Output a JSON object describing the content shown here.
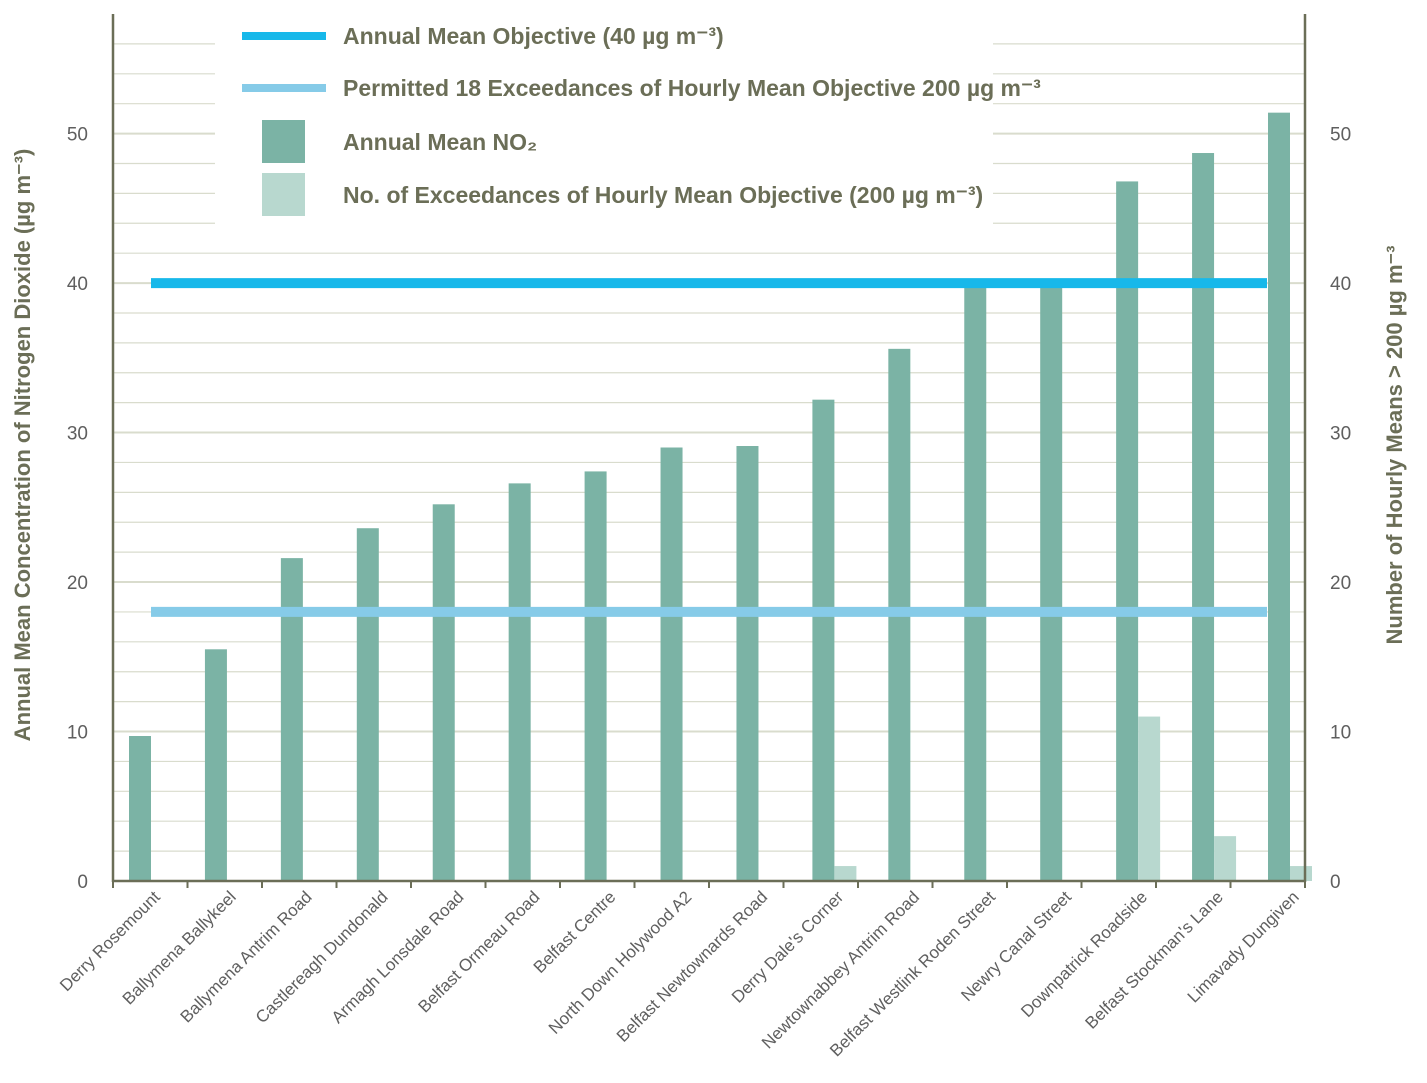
{
  "chart_data": {
    "type": "bar",
    "categories": [
      "Derry Rosemount",
      "Ballymena Ballykeel",
      "Ballymena Antrim Road",
      "Castlereagh Dundonald",
      "Armagh Lonsdale Road",
      "Belfast Ormeau Road",
      "Belfast Centre",
      "North Down Holywood A2",
      "Belfast Newtownards Road",
      "Derry Dale's Corner",
      "Newtownabbey Antrim Road",
      "Belfast Westlink Roden Street",
      "Newry Canal Street",
      "Downpatrick Roadside",
      "Belfast Stockman's Lane",
      "Limavady Dungiven"
    ],
    "series": [
      {
        "name": "Annual Mean NO2",
        "color": "#7bb3a5",
        "axis": "left",
        "values": [
          9.7,
          15.5,
          21.6,
          23.6,
          25.2,
          26.6,
          27.4,
          29.0,
          29.1,
          32.2,
          35.6,
          39.9,
          40.0,
          46.8,
          48.7,
          51.4
        ]
      },
      {
        "name": "No. of Exceedances of Hourly Mean Objective (200 µg m⁻³)",
        "color": "#b8d8cf",
        "axis": "right",
        "values": [
          0,
          0,
          0,
          0,
          0,
          0,
          0,
          0,
          0,
          1,
          0,
          0,
          0,
          11,
          3,
          1
        ]
      }
    ],
    "reference_lines": [
      {
        "name": "Annual Mean Objective (40 µg m⁻³)",
        "value": 40,
        "color": "#17b8ea"
      },
      {
        "name": "Permitted 18 Exceedances of Hourly Mean Objective 200 µg m⁻³",
        "value": 18,
        "color": "#86cbe8"
      }
    ],
    "ylabel": "Annual Mean Concentration of Nitrogen Dioxide (µg m⁻³)",
    "y2label": "Number of Hourly Means > 200 µg m⁻³",
    "ylim": [
      0,
      58
    ],
    "y2lim": [
      0,
      58
    ],
    "yticks": [
      0,
      10,
      20,
      30,
      40,
      50
    ],
    "grid": true,
    "legend_position": "top"
  },
  "legend": {
    "items": [
      {
        "label": "Annual Mean Objective (40 µg m⁻³)",
        "kind": "line",
        "color": "#17b8ea"
      },
      {
        "label": "Permitted 18 Exceedances of Hourly Mean Objective 200 µg m⁻³",
        "kind": "line",
        "color": "#86cbe8"
      },
      {
        "label": "Annual Mean NO₂",
        "kind": "box",
        "color": "#7bb3a5"
      },
      {
        "label": "No. of Exceedances of Hourly Mean Objective (200 µg m⁻³)",
        "kind": "box",
        "color": "#b8d8cf"
      }
    ]
  },
  "colors": {
    "axis": "#6b6e57",
    "grid": "#d9dccd",
    "text": "#6b6e57"
  }
}
